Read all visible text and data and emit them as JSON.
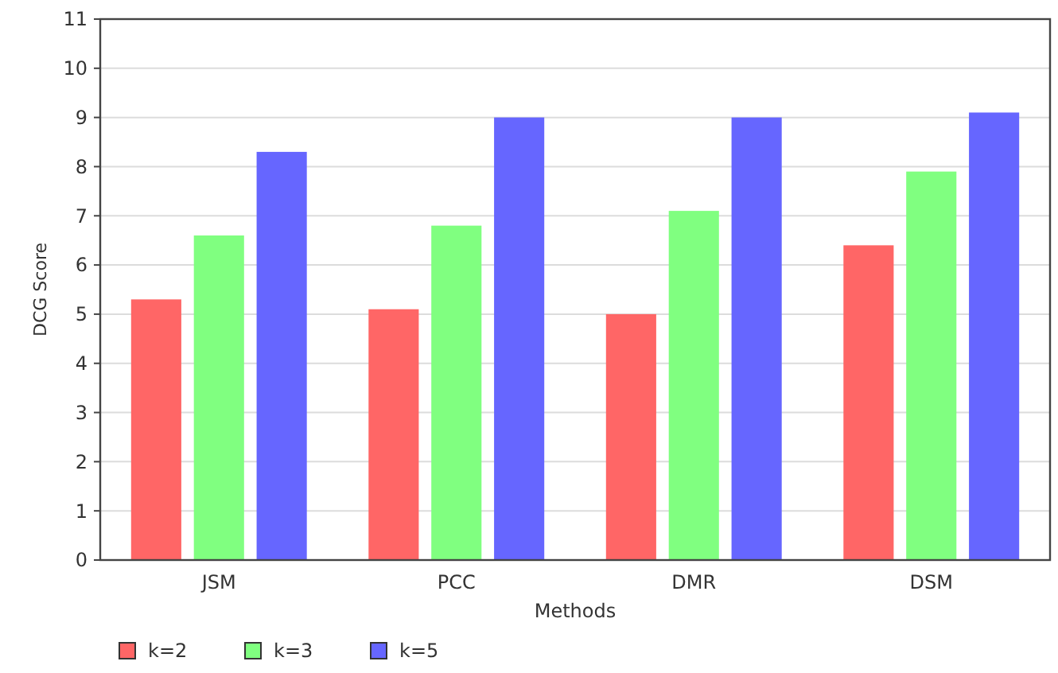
{
  "chart_data": {
    "type": "bar",
    "xlabel": "Methods",
    "ylabel": "DCG Score",
    "categories": [
      "JSM",
      "PCC",
      "DMR",
      "DSM"
    ],
    "series": [
      {
        "name": "k=2",
        "color": "#ff6666",
        "values": [
          5.3,
          5.1,
          5.0,
          6.4
        ]
      },
      {
        "name": "k=3",
        "color": "#80ff80",
        "values": [
          6.6,
          6.8,
          7.1,
          7.9
        ]
      },
      {
        "name": "k=5",
        "color": "#6666ff",
        "values": [
          8.3,
          9.0,
          9.0,
          9.1
        ]
      }
    ],
    "ylim": [
      0,
      11
    ],
    "yticks": [
      0,
      1,
      2,
      3,
      4,
      5,
      6,
      7,
      8,
      9,
      10,
      11
    ],
    "grid": "y",
    "legend": "bottom left"
  }
}
